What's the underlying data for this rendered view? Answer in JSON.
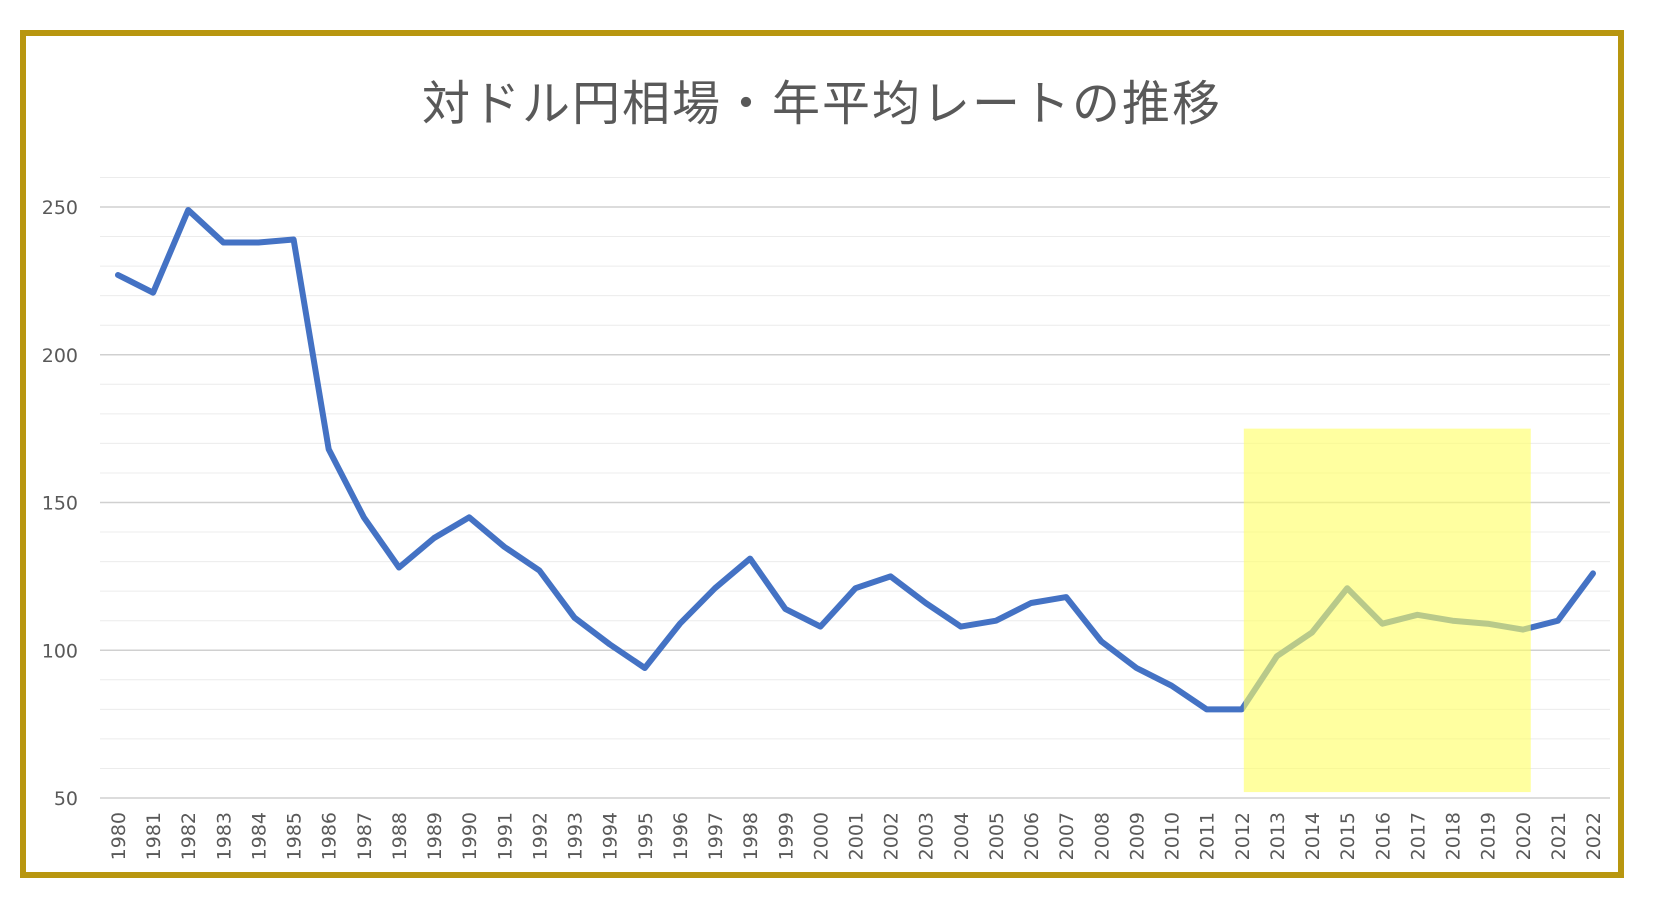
{
  "chart_data": {
    "type": "line",
    "title": "対ドル円相場・年平均レートの推移",
    "xlabel": "",
    "ylabel": "",
    "ylim": [
      50,
      260
    ],
    "yticks": [
      50,
      100,
      150,
      200,
      250
    ],
    "grid": true,
    "x": [
      "1980",
      "1981",
      "1982",
      "1983",
      "1984",
      "1985",
      "1986",
      "1987",
      "1988",
      "1989",
      "1990",
      "1991",
      "1992",
      "1993",
      "1994",
      "1995",
      "1996",
      "1997",
      "1998",
      "1999",
      "2000",
      "2001",
      "2002",
      "2003",
      "2004",
      "2005",
      "2006",
      "2007",
      "2008",
      "2009",
      "2010",
      "2011",
      "2012",
      "2013",
      "2014",
      "2015",
      "2016",
      "2017",
      "2018",
      "2019",
      "2020",
      "2021",
      "2022"
    ],
    "series": [
      {
        "values": [
          227,
          221,
          249,
          238,
          238,
          239,
          168,
          145,
          128,
          138,
          145,
          135,
          127,
          111,
          102,
          94,
          109,
          121,
          131,
          114,
          108,
          121,
          125,
          116,
          108,
          110,
          116,
          118,
          103,
          94,
          88,
          80,
          80,
          98,
          106,
          121,
          109,
          112,
          110,
          109,
          107,
          110,
          126
        ],
        "color": "#4472c4"
      }
    ],
    "highlight": {
      "x_start": "2012",
      "x_end": "2020",
      "y_range": [
        52,
        175
      ],
      "fill_color": "#ffff66",
      "line_color": "#7fa07a"
    }
  }
}
